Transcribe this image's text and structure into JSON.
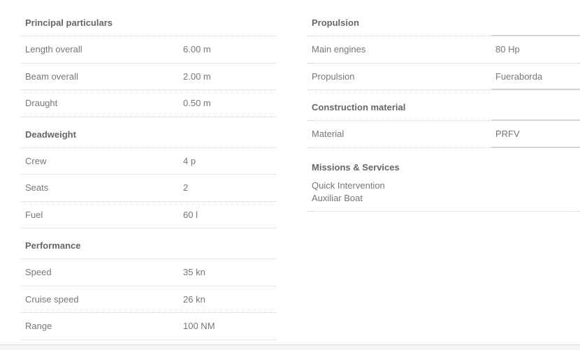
{
  "left": [
    {
      "title": "Principal particulars",
      "rows": [
        [
          "Length overall",
          "6.00 m"
        ],
        [
          "Beam overall",
          "2.00 m"
        ],
        [
          "Draught",
          "0.50 m"
        ]
      ]
    },
    {
      "title": "Deadweight",
      "rows": [
        [
          "Crew",
          "4 p"
        ],
        [
          "Seats",
          "2"
        ],
        [
          "Fuel",
          "60 l"
        ]
      ]
    },
    {
      "title": "Performance",
      "rows": [
        [
          "Speed",
          "35 kn"
        ],
        [
          "Cruise speed",
          "26 kn"
        ],
        [
          "Range",
          "100 NM"
        ]
      ]
    }
  ],
  "right": {
    "propulsion": {
      "title": "Propulsion",
      "rows": [
        [
          "Main engines",
          "80 Hp"
        ],
        [
          "Propulsion",
          "Fueraborda"
        ]
      ]
    },
    "construction": {
      "title": "Construction material",
      "rows": [
        [
          "Material",
          "PRFV"
        ]
      ]
    },
    "missions": {
      "title": "Missions & Services",
      "items": [
        "Quick Intervention",
        "Auxiliar Boat"
      ]
    }
  }
}
